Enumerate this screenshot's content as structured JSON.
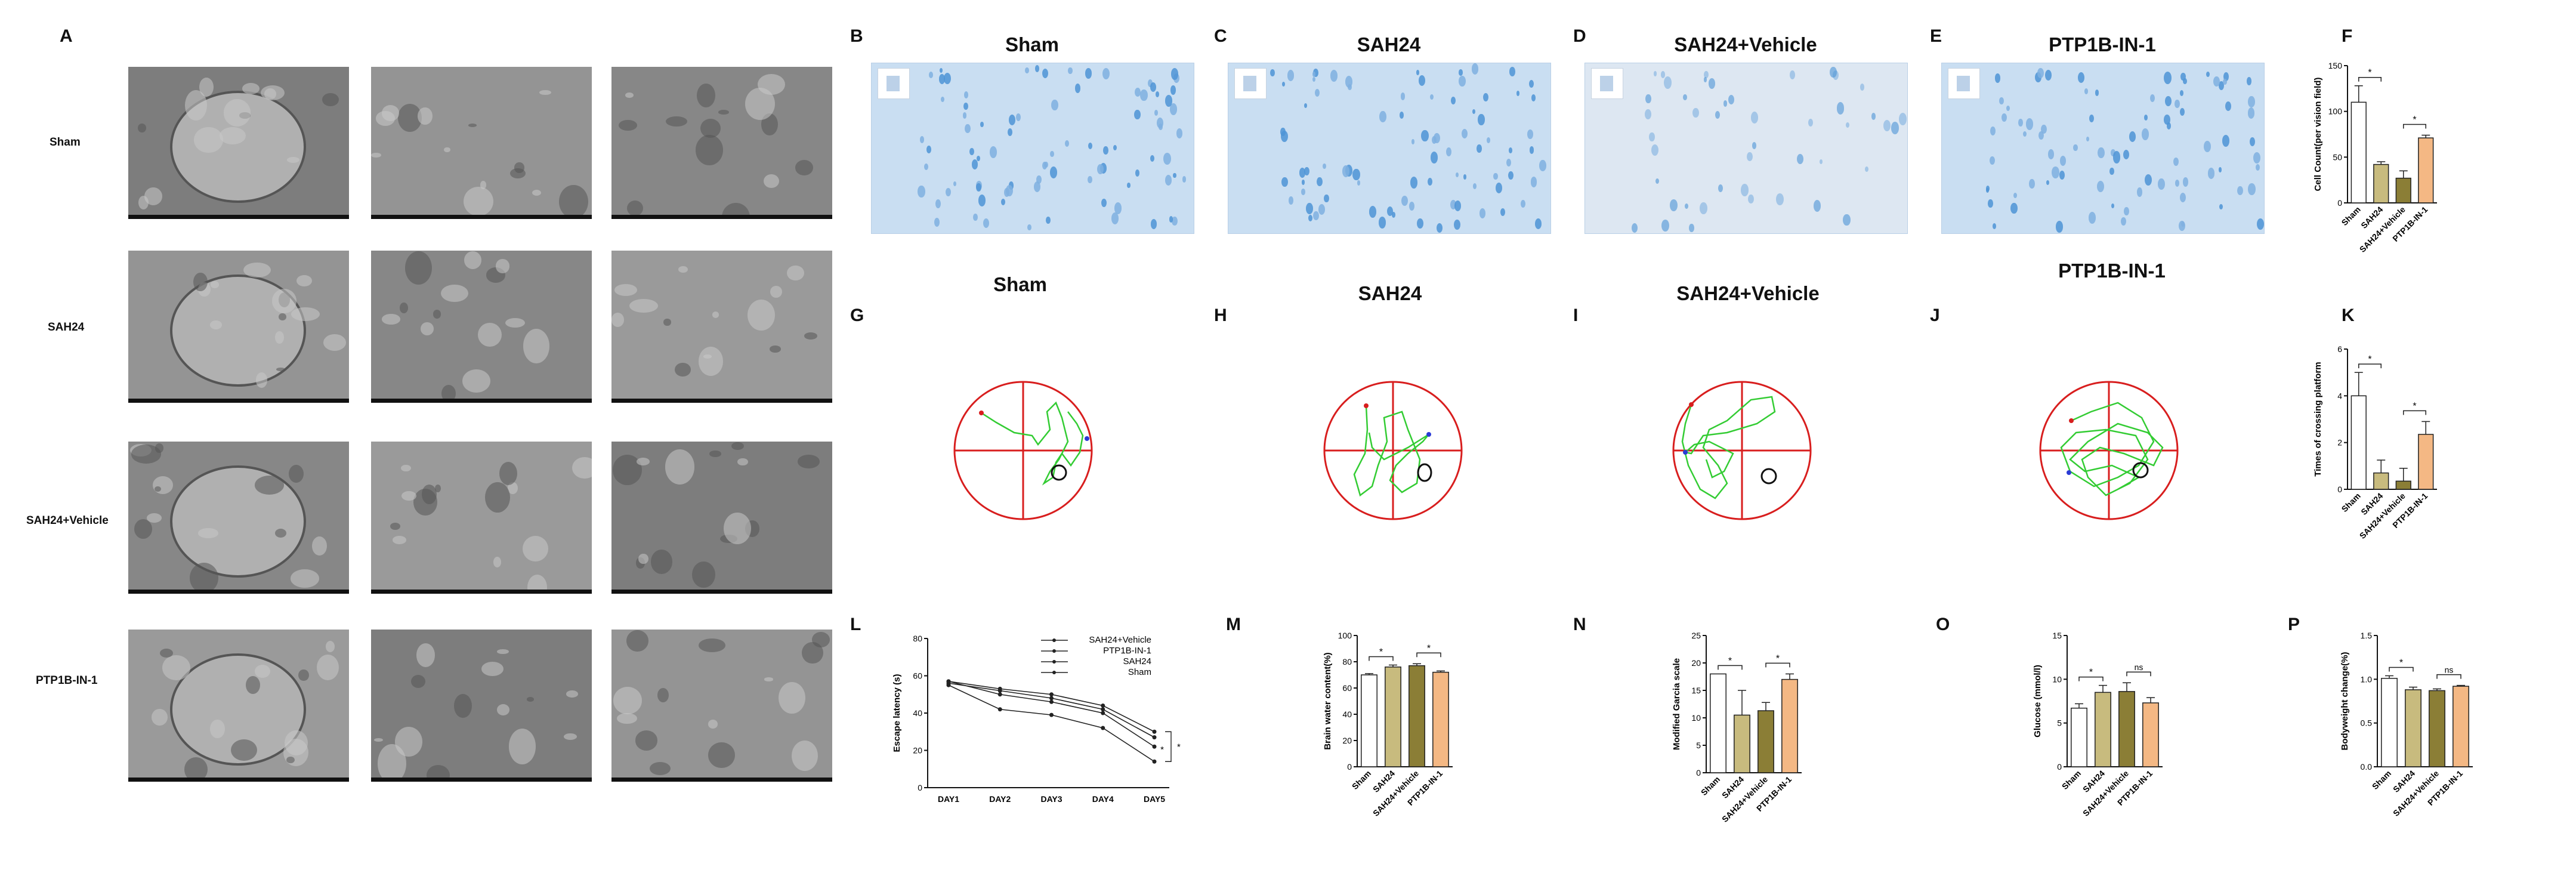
{
  "panel_letters": {
    "A": "A",
    "B": "B",
    "C": "C",
    "D": "D",
    "E": "E",
    "F": "F",
    "G": "G",
    "H": "H",
    "I": "I",
    "J": "J",
    "K": "K",
    "L": "L",
    "M": "M",
    "N": "N",
    "O": "O",
    "P": "P"
  },
  "em_rows": [
    "Sham",
    "SAH24",
    "SAH24+Vehicle",
    "PTP1B-IN-1"
  ],
  "ihc_titles": [
    "Sham",
    "SAH24",
    "SAH24+Vehicle",
    "PTP1B-IN-1"
  ],
  "maze_titles": [
    "Sham",
    "SAH24",
    "SAH24+Vehicle",
    "PTP1B-IN-1"
  ],
  "colors": {
    "sham": "#ffffff",
    "sah24": "#c8bb7e",
    "vehicle": "#8b7e36",
    "ptp1b": "#f4b884",
    "maze_red": "#d81e1e",
    "maze_green": "#33cc33"
  },
  "chart_data": [
    {
      "id": "F",
      "type": "bar",
      "categories": [
        "Sham",
        "SAH24",
        "SAH24+Vehicle",
        "PTP1B-IN-1"
      ],
      "values": [
        110,
        42,
        27,
        71
      ],
      "errors": [
        18,
        3,
        8,
        3
      ],
      "ylabel": "Cell Count(per vision field)",
      "ylim": [
        0,
        150
      ],
      "yticks": [
        0,
        50,
        100,
        150
      ],
      "tick_labels": [
        "0",
        "50",
        "100",
        "150"
      ],
      "significance": [
        {
          "from": 0,
          "to": 1,
          "label": "*"
        },
        {
          "from": 2,
          "to": 3,
          "label": "*"
        }
      ]
    },
    {
      "id": "K",
      "type": "bar",
      "categories": [
        "Sham",
        "SAH24",
        "SAH24+Vehicle",
        "PTP1B-IN-1"
      ],
      "values": [
        4.0,
        0.7,
        0.35,
        2.35
      ],
      "errors": [
        1.0,
        0.55,
        0.55,
        0.55
      ],
      "ylabel": "Times of crossing platform",
      "ylim": [
        0,
        6
      ],
      "yticks": [
        0,
        2,
        4,
        6
      ],
      "tick_labels": [
        "0",
        "2",
        "4",
        "6"
      ],
      "significance": [
        {
          "from": 0,
          "to": 1,
          "label": "*"
        },
        {
          "from": 2,
          "to": 3,
          "label": "*"
        }
      ]
    },
    {
      "id": "L",
      "type": "line",
      "categories": [
        "DAY1",
        "DAY2",
        "DAY3",
        "DAY4",
        "DAY5"
      ],
      "series": [
        {
          "name": "SAH24+Vehicle",
          "values": [
            57,
            53,
            50,
            44,
            30
          ]
        },
        {
          "name": "PTP1B-IN-1",
          "values": [
            57,
            50,
            46,
            40,
            22
          ]
        },
        {
          "name": "SAH24",
          "values": [
            56,
            52,
            48,
            42,
            27
          ]
        },
        {
          "name": "Sham",
          "values": [
            55,
            42,
            39,
            32,
            14
          ]
        }
      ],
      "ylabel": "Escape latency  (s)",
      "ylim": [
        0,
        80
      ],
      "yticks": [
        0,
        20,
        40,
        60,
        80
      ],
      "tick_labels": [
        "0",
        "20",
        "40",
        "60",
        "80"
      ],
      "significance": [
        {
          "label": "*"
        },
        {
          "label": "*"
        }
      ]
    },
    {
      "id": "M",
      "type": "bar",
      "categories": [
        "Sham",
        "SAH24",
        "SAH24+Vehicle",
        "PTP1B-IN-1"
      ],
      "values": [
        70,
        76,
        77,
        72
      ],
      "errors": [
        1,
        1.5,
        1.5,
        1
      ],
      "ylabel": "Brain water content(%)",
      "ylim": [
        0,
        100
      ],
      "yticks": [
        0,
        20,
        40,
        60,
        80,
        100
      ],
      "tick_labels": [
        "0",
        "20",
        "40",
        "60",
        "80",
        "100"
      ],
      "significance": [
        {
          "from": 0,
          "to": 1,
          "label": "*"
        },
        {
          "from": 2,
          "to": 3,
          "label": "*"
        }
      ]
    },
    {
      "id": "N",
      "type": "bar",
      "categories": [
        "Sham",
        "SAH24",
        "SAH24+Vehicle",
        "PTP1B-IN-1"
      ],
      "values": [
        18,
        10.5,
        11.3,
        17
      ],
      "errors": [
        0,
        4.5,
        1.5,
        1
      ],
      "ylabel": "Modified Garcia scale",
      "ylim": [
        0,
        25
      ],
      "yticks": [
        0,
        5,
        10,
        15,
        20,
        25
      ],
      "tick_labels": [
        "0",
        "5",
        "10",
        "15",
        "20",
        "25"
      ],
      "significance": [
        {
          "from": 0,
          "to": 1,
          "label": "*"
        },
        {
          "from": 2,
          "to": 3,
          "label": "*"
        }
      ]
    },
    {
      "id": "O",
      "type": "bar",
      "categories": [
        "Sham",
        "SAH24",
        "SAH24+Vehicle",
        "PTP1B-IN-1"
      ],
      "values": [
        6.7,
        8.5,
        8.6,
        7.3
      ],
      "errors": [
        0.5,
        0.8,
        1.0,
        0.6
      ],
      "ylabel": "Glucose  (mmol/l)",
      "ylim": [
        0,
        15
      ],
      "yticks": [
        0,
        5,
        10,
        15
      ],
      "tick_labels": [
        "0",
        "5",
        "10",
        "15"
      ],
      "significance": [
        {
          "from": 0,
          "to": 1,
          "label": "*"
        },
        {
          "from": 2,
          "to": 3,
          "label": "ns"
        }
      ]
    },
    {
      "id": "P",
      "type": "bar",
      "categories": [
        "Sham",
        "SAH24",
        "SAH24+Vehicle",
        "PTP1B-IN-1"
      ],
      "values": [
        1.01,
        0.88,
        0.87,
        0.92
      ],
      "errors": [
        0.03,
        0.03,
        0.02,
        0.01
      ],
      "ylabel": "Bodyweight change(%)",
      "ylim": [
        0,
        1.5
      ],
      "yticks": [
        0,
        0.5,
        1.0,
        1.5
      ],
      "tick_labels": [
        "0.0",
        "0.5",
        "1.0",
        "1.5"
      ],
      "significance": [
        {
          "from": 0,
          "to": 1,
          "label": "*"
        },
        {
          "from": 2,
          "to": 3,
          "label": "ns"
        }
      ]
    }
  ]
}
